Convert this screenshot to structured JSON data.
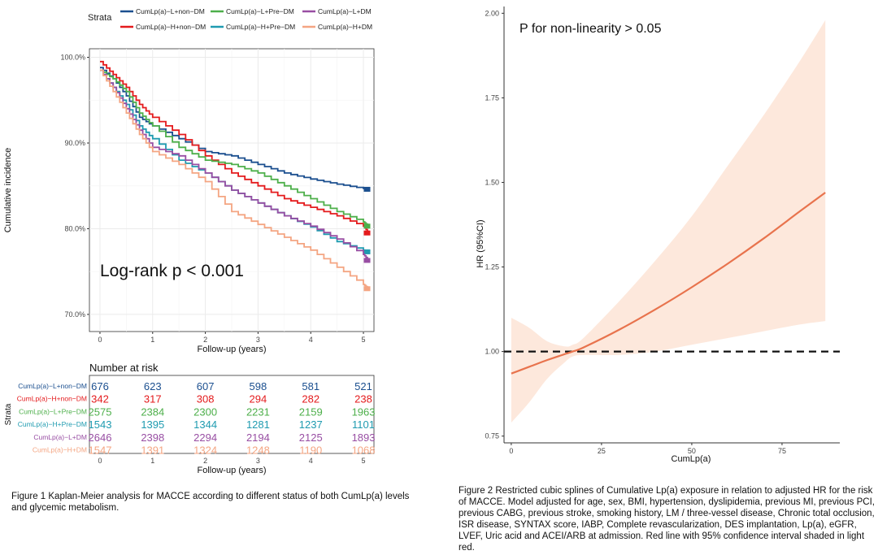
{
  "figure1": {
    "legend_title": "Strata",
    "plot_annotation": "Log-rank p < 0.001",
    "risk_table_title": "Number at risk",
    "risk_table_ylabel": "Strata",
    "risk_table_xlabel": "Follow-up (years)",
    "caption": "Figure 1 Kaplan-Meier analysis for MACCE according to different status of both CumLp(a) levels and glycemic metabolism."
  },
  "figure2": {
    "annotation": "P for non-linearity > 0.05",
    "caption": "Figure 2 Restricted cubic splines of Cumulative Lp(a) exposure in relation to adjusted HR for the risk of MACCE. Model adjusted for age, sex, BMI, hypertension, dyslipidemia, previous MI, previous PCI, previous CABG, previous stroke, smoking history, LM / three-vessel disease, Chronic total occlusion, ISR disease, SYNTAX score, IABP, Complete revascularization, DES implantation, Lp(a), eGFR, LVEF, Uric acid and ACEI/ARB at admission. Red line with 95% confidence interval shaded in light red."
  },
  "chart_data": [
    {
      "type": "line",
      "xlabel": "Follow-up (years)",
      "ylabel": "Cumulative incidence",
      "xlim": [
        -0.2,
        5.2
      ],
      "ylim": [
        68,
        101
      ],
      "xticks": [
        0,
        1,
        2,
        3,
        4,
        5
      ],
      "yticks": [
        70,
        80,
        90,
        100
      ],
      "ytick_labels": [
        "70.0%",
        "80.0%",
        "90.0%",
        "100.0%"
      ],
      "grid": true,
      "legend_position": "top",
      "series": [
        {
          "name": "CumLp(a)−L+non−DM",
          "color": "#1b4f8f",
          "x": [
            0,
            0.25,
            0.5,
            0.75,
            1,
            1.5,
            2,
            2.5,
            3,
            3.5,
            4,
            4.5,
            5,
            5.1
          ],
          "values": [
            98.8,
            97.5,
            95.5,
            93,
            92,
            90.5,
            89,
            88.5,
            87.5,
            86.5,
            85.8,
            85.2,
            84.7,
            84.6
          ]
        },
        {
          "name": "CumLp(a)−H+non−DM",
          "color": "#e41a1c",
          "x": [
            0,
            0.25,
            0.5,
            0.75,
            1,
            1.5,
            2,
            2.5,
            3,
            3.5,
            4,
            4.5,
            5,
            5.1
          ],
          "values": [
            99.5,
            98,
            96.5,
            94.5,
            93,
            91,
            88.5,
            86.5,
            85,
            83.5,
            82.5,
            81.5,
            80.3,
            79.5
          ]
        },
        {
          "name": "CumLp(a)−L+Pre−DM",
          "color": "#4daf4a",
          "x": [
            0,
            0.25,
            0.5,
            0.75,
            1,
            1.5,
            2,
            2.5,
            3,
            3.5,
            4,
            4.5,
            5,
            5.1
          ],
          "values": [
            98.5,
            97.5,
            96,
            93.5,
            92,
            89.5,
            88,
            87.5,
            86.5,
            85,
            83.5,
            82,
            80.8,
            80.3
          ]
        },
        {
          "name": "CumLp(a)−H+Pre−DM",
          "color": "#1f9bb0",
          "x": [
            0,
            0.25,
            0.5,
            0.75,
            1,
            1.5,
            2,
            2.5,
            3,
            3.5,
            4,
            4.5,
            5,
            5.1
          ],
          "values": [
            98.5,
            96.5,
            94.5,
            92,
            90.5,
            88,
            86.5,
            84.5,
            83,
            81.5,
            80.2,
            78.5,
            77.5,
            77.3
          ]
        },
        {
          "name": "CumLp(a)−L+DM",
          "color": "#984ea3",
          "x": [
            0,
            0.25,
            0.5,
            0.75,
            1,
            1.5,
            2,
            2.5,
            3,
            3.5,
            4,
            4.5,
            5,
            5.1
          ],
          "values": [
            98.5,
            96.5,
            94,
            91.5,
            89.5,
            88.5,
            86.5,
            84.5,
            83,
            81.5,
            80.3,
            78.8,
            77,
            76.3
          ]
        },
        {
          "name": "CumLp(a)−H+DM",
          "color": "#f4a582",
          "x": [
            0,
            0.25,
            0.5,
            0.75,
            1,
            1.5,
            2,
            2.5,
            3,
            3.5,
            4,
            4.5,
            5,
            5.1
          ],
          "values": [
            98.5,
            96,
            93.5,
            91,
            89,
            87.5,
            85.5,
            82,
            80.5,
            79,
            77.5,
            75.5,
            73.5,
            73
          ]
        }
      ]
    },
    {
      "type": "table",
      "title": "Number at risk",
      "columns": [
        0,
        1,
        2,
        3,
        4,
        5
      ],
      "rows": [
        {
          "name": "CumLp(a)−L+non−DM",
          "color": "#1b4f8f",
          "values": [
            676,
            623,
            607,
            598,
            581,
            521
          ]
        },
        {
          "name": "CumLp(a)−H+non−DM",
          "color": "#e41a1c",
          "values": [
            342,
            317,
            308,
            294,
            282,
            238
          ]
        },
        {
          "name": "CumLp(a)−L+Pre−DM",
          "color": "#4daf4a",
          "values": [
            2575,
            2384,
            2300,
            2231,
            2159,
            1963
          ]
        },
        {
          "name": "CumLp(a)−H+Pre−DM",
          "color": "#1f9bb0",
          "values": [
            1543,
            1395,
            1344,
            1281,
            1237,
            1101
          ]
        },
        {
          "name": "CumLp(a)−L+DM",
          "color": "#984ea3",
          "values": [
            2646,
            2398,
            2294,
            2194,
            2125,
            1893
          ]
        },
        {
          "name": "CumLp(a)−H+DM",
          "color": "#f4a582",
          "values": [
            1547,
            1391,
            1324,
            1248,
            1190,
            1068
          ]
        }
      ]
    },
    {
      "type": "line",
      "xlabel": "CumLp(a)",
      "ylabel": "HR (95%CI)",
      "xlim": [
        -2,
        91
      ],
      "ylim": [
        0.73,
        2.02
      ],
      "xticks": [
        0,
        25,
        50,
        75
      ],
      "yticks": [
        0.75,
        1.0,
        1.25,
        1.5,
        1.75,
        2.0
      ],
      "ytick_labels": [
        "0.75",
        "1.00",
        "1.25",
        "1.50",
        "1.75",
        "2.00"
      ],
      "grid": false,
      "reference_line": 1.0,
      "line_color": "#e8734d",
      "band_color": "#fde8dc",
      "x": [
        0,
        5,
        10,
        15,
        17,
        20,
        30,
        40,
        50,
        60,
        70,
        80,
        87
      ],
      "hr": [
        0.935,
        0.955,
        0.975,
        0.993,
        1.0,
        1.012,
        1.065,
        1.125,
        1.19,
        1.26,
        1.335,
        1.415,
        1.47
      ],
      "lower": [
        0.79,
        0.85,
        0.92,
        0.97,
        0.985,
        0.99,
        0.99,
        1.0,
        1.02,
        1.04,
        1.06,
        1.08,
        1.09
      ],
      "upper": [
        1.1,
        1.07,
        1.03,
        1.015,
        1.02,
        1.04,
        1.15,
        1.27,
        1.4,
        1.55,
        1.7,
        1.86,
        1.98
      ]
    }
  ]
}
